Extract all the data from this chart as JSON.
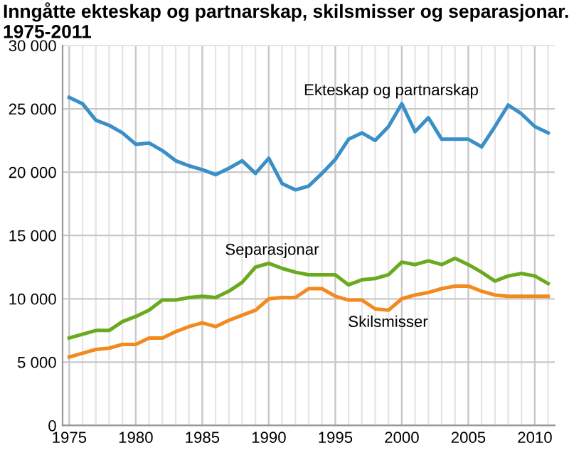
{
  "chart_data": {
    "type": "line",
    "title": "Inngåtte ekteskap og partnarskap, skilsmisser og separasjonar.\n1975-2011",
    "x": [
      1975,
      1976,
      1977,
      1978,
      1979,
      1980,
      1981,
      1982,
      1983,
      1984,
      1985,
      1986,
      1987,
      1988,
      1989,
      1990,
      1991,
      1992,
      1993,
      1994,
      1995,
      1996,
      1997,
      1998,
      1999,
      2000,
      2001,
      2002,
      2003,
      2004,
      2005,
      2006,
      2007,
      2008,
      2009,
      2010,
      2011
    ],
    "series": [
      {
        "name": "Ekteskap og partnarskap",
        "color": "#3a8fc7",
        "values": [
          25900,
          25400,
          24100,
          23700,
          23100,
          22200,
          22300,
          21700,
          20900,
          20500,
          20200,
          19800,
          20300,
          20900,
          19900,
          21100,
          19100,
          18600,
          18900,
          19900,
          21000,
          22600,
          23100,
          22500,
          23600,
          25400,
          23200,
          24300,
          22600,
          22600,
          22600,
          22000,
          23600,
          25300,
          24600,
          23600,
          23100
        ]
      },
      {
        "name": "Separasjonar",
        "color": "#6aaa1e",
        "values": [
          6900,
          7200,
          7500,
          7500,
          8200,
          8600,
          9100,
          9900,
          9900,
          10100,
          10200,
          10100,
          10600,
          11300,
          12500,
          12800,
          12400,
          12100,
          11900,
          11900,
          11900,
          11100,
          11500,
          11600,
          11900,
          12900,
          12700,
          13000,
          12700,
          13200,
          12700,
          12100,
          11400,
          11800,
          12000,
          11800,
          11200
        ]
      },
      {
        "name": "Skilsmisser",
        "color": "#f28a20",
        "values": [
          5400,
          5700,
          6000,
          6100,
          6400,
          6400,
          6900,
          6900,
          7400,
          7800,
          8100,
          7800,
          8300,
          8700,
          9100,
          10000,
          10100,
          10100,
          10800,
          10800,
          10200,
          9900,
          9900,
          9200,
          9100,
          10000,
          10300,
          10500,
          10800,
          11000,
          11000,
          10600,
          10300,
          10200,
          10200,
          10200,
          10200
        ]
      }
    ],
    "xlim": [
      1974.5,
      2011.5
    ],
    "xticks": [
      1975,
      1980,
      1985,
      1990,
      1995,
      2000,
      2005,
      2010
    ],
    "ylim": [
      0,
      30000
    ],
    "yticks": [
      0,
      {
        "value": 5000,
        "label": "5 000"
      },
      {
        "value": 10000,
        "label": "10 000"
      },
      {
        "value": 15000,
        "label": "15 000"
      },
      {
        "value": 20000,
        "label": "20 000"
      },
      {
        "value": 25000,
        "label": "25 000"
      },
      {
        "value": 30000,
        "label": "30 000"
      }
    ],
    "grid": true,
    "legend": false,
    "marker": "none",
    "line_style": "solid"
  }
}
